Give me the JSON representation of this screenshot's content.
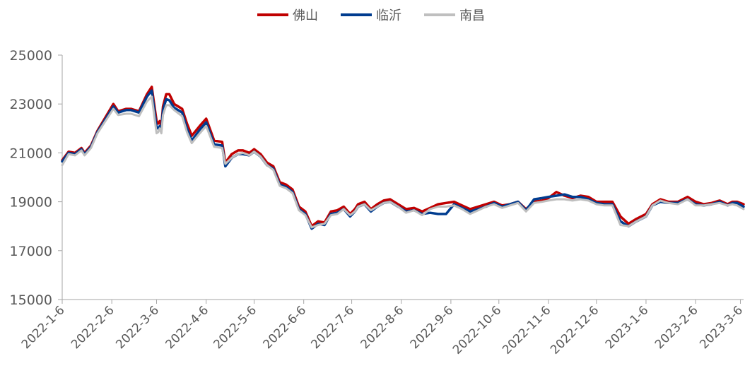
{
  "chart_data": {
    "type": "line",
    "title": "",
    "xlabel": "",
    "ylabel": "",
    "ylim": [
      15000,
      25000
    ],
    "yticks": [
      15000,
      17000,
      19000,
      21000,
      23000,
      25000
    ],
    "ytick_labels": [
      "15000",
      "17000",
      "19000",
      "21000",
      "23000",
      "25000"
    ],
    "xlim": [
      "2022-01-06",
      "2023-03-08"
    ],
    "xticks": [
      "2022-01-06",
      "2022-02-06",
      "2022-03-06",
      "2022-04-06",
      "2022-05-06",
      "2022-06-06",
      "2022-07-06",
      "2022-08-06",
      "2022-09-06",
      "2022-10-06",
      "2022-11-06",
      "2022-12-06",
      "2023-01-06",
      "2023-02-06",
      "2023-03-06"
    ],
    "xtick_labels": [
      "2022-1-6",
      "2022-2-6",
      "2022-3-6",
      "2022-4-6",
      "2022-5-6",
      "2022-6-6",
      "2022-7-6",
      "2022-8-6",
      "2022-9-6",
      "2022-10-6",
      "2022-11-6",
      "2022-12-6",
      "2023-1-6",
      "2023-2-6",
      "2023-3-6"
    ],
    "grid": false,
    "legend_position": "top-center",
    "x": [
      "2022-01-06",
      "2022-01-10",
      "2022-01-14",
      "2022-01-18",
      "2022-01-20",
      "2022-01-24",
      "2022-01-28",
      "2022-02-07",
      "2022-02-10",
      "2022-02-15",
      "2022-02-18",
      "2022-02-23",
      "2022-02-28",
      "2022-03-03",
      "2022-03-06",
      "2022-03-07",
      "2022-03-08",
      "2022-03-09",
      "2022-03-10",
      "2022-03-12",
      "2022-03-14",
      "2022-03-17",
      "2022-03-22",
      "2022-03-25",
      "2022-03-28",
      "2022-04-02",
      "2022-04-06",
      "2022-04-11",
      "2022-04-16",
      "2022-04-18",
      "2022-04-22",
      "2022-04-26",
      "2022-04-29",
      "2022-05-03",
      "2022-05-06",
      "2022-05-10",
      "2022-05-14",
      "2022-05-18",
      "2022-05-22",
      "2022-05-26",
      "2022-05-30",
      "2022-06-03",
      "2022-06-07",
      "2022-06-11",
      "2022-06-15",
      "2022-06-19",
      "2022-06-23",
      "2022-06-27",
      "2022-07-01",
      "2022-07-05",
      "2022-07-08",
      "2022-07-10",
      "2022-07-14",
      "2022-07-18",
      "2022-07-22",
      "2022-07-26",
      "2022-07-30",
      "2022-08-04",
      "2022-08-09",
      "2022-08-14",
      "2022-08-19",
      "2022-08-24",
      "2022-08-29",
      "2022-09-03",
      "2022-09-08",
      "2022-09-13",
      "2022-09-18",
      "2022-09-23",
      "2022-09-28",
      "2022-10-03",
      "2022-10-08",
      "2022-10-13",
      "2022-10-18",
      "2022-10-23",
      "2022-10-28",
      "2022-11-02",
      "2022-11-06",
      "2022-11-11",
      "2022-11-16",
      "2022-11-21",
      "2022-11-26",
      "2022-12-01",
      "2022-12-06",
      "2022-12-11",
      "2022-12-16",
      "2022-12-21",
      "2022-12-26",
      "2022-12-31",
      "2023-01-06",
      "2023-01-10",
      "2023-01-15",
      "2023-01-20",
      "2023-01-26",
      "2023-02-01",
      "2023-02-06",
      "2023-02-11",
      "2023-02-16",
      "2023-02-21",
      "2023-02-26",
      "2023-03-01",
      "2023-03-04",
      "2023-03-08"
    ],
    "series": [
      {
        "name": "佛山",
        "color": "#C00000",
        "values": [
          20700,
          21050,
          21000,
          21200,
          21000,
          21300,
          21900,
          23000,
          22700,
          22800,
          22800,
          22700,
          23400,
          23700,
          22300,
          22200,
          22300,
          22100,
          22900,
          23400,
          23400,
          23000,
          22800,
          22200,
          21700,
          22100,
          22400,
          21500,
          21450,
          20600,
          20950,
          21100,
          21100,
          21000,
          21150,
          20950,
          20600,
          20450,
          19800,
          19700,
          19500,
          18800,
          18600,
          18000,
          18200,
          18150,
          18600,
          18650,
          18800,
          18500,
          18700,
          18900,
          19000,
          18700,
          18900,
          19050,
          19100,
          18900,
          18700,
          18750,
          18600,
          18750,
          18900,
          18950,
          19000,
          18850,
          18700,
          18800,
          18900,
          19000,
          18850,
          18900,
          19000,
          18700,
          19000,
          19050,
          19150,
          19400,
          19250,
          19150,
          19250,
          19200,
          19000,
          19000,
          19000,
          18400,
          18100,
          18300,
          18500,
          18900,
          19100,
          19000,
          19000,
          19200,
          19000,
          18900,
          18950,
          19050,
          18900,
          19000,
          19000,
          18900
        ]
      },
      {
        "name": "临沂",
        "color": "#003C8F",
        "values": [
          20650,
          21000,
          20950,
          21150,
          20950,
          21250,
          21850,
          22900,
          22650,
          22750,
          22750,
          22650,
          23300,
          23550,
          22050,
          22000,
          22100,
          21950,
          22750,
          23200,
          23150,
          22850,
          22650,
          22000,
          21500,
          21950,
          22250,
          21350,
          21300,
          20450,
          20800,
          20950,
          20950,
          20900,
          21050,
          20850,
          20500,
          20350,
          19700,
          19600,
          19400,
          18700,
          18500,
          17900,
          18100,
          18050,
          18500,
          18550,
          18700,
          18400,
          18600,
          18800,
          18900,
          18600,
          18800,
          18950,
          19000,
          18800,
          18600,
          18650,
          18500,
          18550,
          18500,
          18500,
          18900,
          18750,
          18600,
          18700,
          18800,
          18950,
          18800,
          18900,
          19000,
          18650,
          19100,
          19150,
          19200,
          19250,
          19300,
          19200,
          19200,
          19100,
          18950,
          18900,
          18900,
          18200,
          18000,
          18200,
          18400,
          18850,
          19000,
          18950,
          18950,
          19100,
          18900,
          18850,
          18900,
          19000,
          18850,
          18950,
          18950,
          18800
        ]
      },
      {
        "name": "南昌",
        "color": "#BFBFBF",
        "values": [
          20500,
          20950,
          20900,
          21100,
          20900,
          21200,
          21800,
          22800,
          22550,
          22600,
          22600,
          22500,
          23100,
          23300,
          21800,
          21850,
          22000,
          21800,
          22550,
          22950,
          22950,
          22750,
          22500,
          21850,
          21400,
          21800,
          22100,
          21250,
          21200,
          20550,
          20800,
          20950,
          21000,
          20900,
          21050,
          20850,
          20500,
          20300,
          19650,
          19550,
          19350,
          18650,
          18450,
          17950,
          18050,
          18100,
          18450,
          18500,
          18700,
          18450,
          18600,
          18800,
          18900,
          18650,
          18800,
          18950,
          19000,
          18800,
          18550,
          18650,
          18450,
          18700,
          18800,
          18800,
          18850,
          18700,
          18500,
          18650,
          18800,
          18900,
          18750,
          18850,
          18950,
          18600,
          18950,
          19000,
          19050,
          19100,
          19100,
          19050,
          19100,
          19050,
          18900,
          18850,
          18850,
          18050,
          18000,
          18200,
          18400,
          18850,
          19050,
          18950,
          18900,
          19100,
          18850,
          18850,
          18900,
          18950,
          18850,
          18900,
          18850,
          18700
        ]
      }
    ]
  }
}
